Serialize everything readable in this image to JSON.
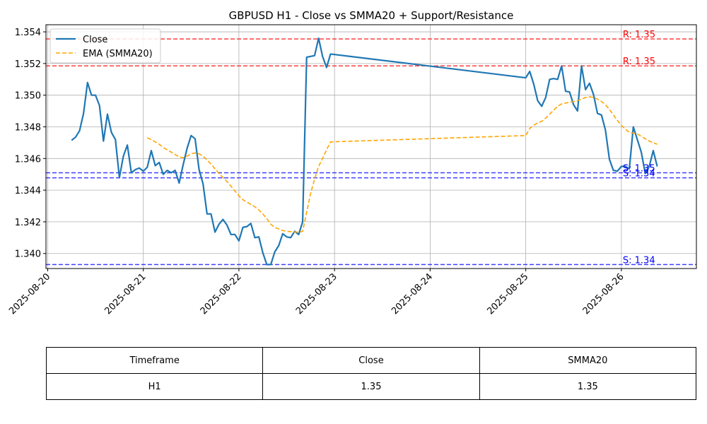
{
  "chart_data": {
    "type": "line",
    "title": "GBPUSD H1 - Close vs SMMA20 + Support/Resistance",
    "xlabel": "",
    "ylabel": "",
    "x_tick_labels": [
      "2025-08-20",
      "2025-08-21",
      "2025-08-22",
      "2025-08-23",
      "2025-08-24",
      "2025-08-25",
      "2025-08-26"
    ],
    "y_tick_labels": [
      "1.340",
      "1.342",
      "1.344",
      "1.346",
      "1.348",
      "1.350",
      "1.352",
      "1.354"
    ],
    "xlim": [
      "2025-08-19 23:34",
      "2025-08-26 18:50"
    ],
    "ylim": [
      1.33905,
      1.35445
    ],
    "grid": true,
    "legend_position": "top-left",
    "series": [
      {
        "name": "Close",
        "style": "solid",
        "color": "#1f77b4",
        "points": [
          [
            "2025-08-20 06:00",
            1.34715
          ],
          [
            "2025-08-20 07:00",
            1.34735
          ],
          [
            "2025-08-20 08:00",
            1.34775
          ],
          [
            "2025-08-20 09:00",
            1.34885
          ],
          [
            "2025-08-20 10:00",
            1.3508
          ],
          [
            "2025-08-20 11:00",
            1.35
          ],
          [
            "2025-08-20 12:00",
            1.35
          ],
          [
            "2025-08-20 13:00",
            1.34935
          ],
          [
            "2025-08-20 14:00",
            1.3471
          ],
          [
            "2025-08-20 15:00",
            1.3488
          ],
          [
            "2025-08-20 16:00",
            1.34765
          ],
          [
            "2025-08-20 17:00",
            1.3472
          ],
          [
            "2025-08-20 18:00",
            1.3448
          ],
          [
            "2025-08-20 19:00",
            1.34615
          ],
          [
            "2025-08-20 20:00",
            1.34685
          ],
          [
            "2025-08-20 21:00",
            1.3451
          ],
          [
            "2025-08-20 22:00",
            1.3453
          ],
          [
            "2025-08-20 23:00",
            1.3454
          ],
          [
            "2025-08-21 00:00",
            1.3452
          ],
          [
            "2025-08-21 01:00",
            1.34545
          ],
          [
            "2025-08-21 02:00",
            1.3465
          ],
          [
            "2025-08-21 03:00",
            1.34555
          ],
          [
            "2025-08-21 04:00",
            1.34575
          ],
          [
            "2025-08-21 05:00",
            1.345
          ],
          [
            "2025-08-21 06:00",
            1.34525
          ],
          [
            "2025-08-21 07:00",
            1.3451
          ],
          [
            "2025-08-21 08:00",
            1.34525
          ],
          [
            "2025-08-21 09:00",
            1.34445
          ],
          [
            "2025-08-21 10:00",
            1.3456
          ],
          [
            "2025-08-21 11:00",
            1.34665
          ],
          [
            "2025-08-21 12:00",
            1.34745
          ],
          [
            "2025-08-21 13:00",
            1.34725
          ],
          [
            "2025-08-21 14:00",
            1.3453
          ],
          [
            "2025-08-21 15:00",
            1.3444
          ],
          [
            "2025-08-21 16:00",
            1.3425
          ],
          [
            "2025-08-21 17:00",
            1.3425
          ],
          [
            "2025-08-21 18:00",
            1.34135
          ],
          [
            "2025-08-21 19:00",
            1.34185
          ],
          [
            "2025-08-21 20:00",
            1.34215
          ],
          [
            "2025-08-21 21:00",
            1.3418
          ],
          [
            "2025-08-21 22:00",
            1.3412
          ],
          [
            "2025-08-21 23:00",
            1.3412
          ],
          [
            "2025-08-22 00:00",
            1.3408
          ],
          [
            "2025-08-22 01:00",
            1.34165
          ],
          [
            "2025-08-22 02:00",
            1.3417
          ],
          [
            "2025-08-22 03:00",
            1.3419
          ],
          [
            "2025-08-22 04:00",
            1.341
          ],
          [
            "2025-08-22 05:00",
            1.34105
          ],
          [
            "2025-08-22 06:00",
            1.34005
          ],
          [
            "2025-08-22 07:00",
            1.3393
          ],
          [
            "2025-08-22 08:00",
            1.3393
          ],
          [
            "2025-08-22 09:00",
            1.3401
          ],
          [
            "2025-08-22 10:00",
            1.3405
          ],
          [
            "2025-08-22 11:00",
            1.34125
          ],
          [
            "2025-08-22 12:00",
            1.34105
          ],
          [
            "2025-08-22 13:00",
            1.341
          ],
          [
            "2025-08-22 14:00",
            1.3414
          ],
          [
            "2025-08-22 15:00",
            1.3412
          ],
          [
            "2025-08-22 16:00",
            1.342
          ],
          [
            "2025-08-22 17:00",
            1.3524
          ],
          [
            "2025-08-22 18:00",
            1.35245
          ],
          [
            "2025-08-22 19:00",
            1.3525
          ],
          [
            "2025-08-22 20:00",
            1.3536
          ],
          [
            "2025-08-22 21:00",
            1.35245
          ],
          [
            "2025-08-22 22:00",
            1.35175
          ],
          [
            "2025-08-22 23:00",
            1.3526
          ],
          [
            "2025-08-25 00:00",
            1.3511
          ],
          [
            "2025-08-25 01:00",
            1.3515
          ],
          [
            "2025-08-25 02:00",
            1.3507
          ],
          [
            "2025-08-25 03:00",
            1.34965
          ],
          [
            "2025-08-25 04:00",
            1.3493
          ],
          [
            "2025-08-25 05:00",
            1.34985
          ],
          [
            "2025-08-25 06:00",
            1.351
          ],
          [
            "2025-08-25 07:00",
            1.35105
          ],
          [
            "2025-08-25 08:00",
            1.351
          ],
          [
            "2025-08-25 09:00",
            1.35185
          ],
          [
            "2025-08-25 10:00",
            1.35025
          ],
          [
            "2025-08-25 11:00",
            1.3502
          ],
          [
            "2025-08-25 12:00",
            1.3494
          ],
          [
            "2025-08-25 13:00",
            1.349
          ],
          [
            "2025-08-25 14:00",
            1.35185
          ],
          [
            "2025-08-25 15:00",
            1.35035
          ],
          [
            "2025-08-25 16:00",
            1.35075
          ],
          [
            "2025-08-25 17:00",
            1.35005
          ],
          [
            "2025-08-25 18:00",
            1.34885
          ],
          [
            "2025-08-25 19:00",
            1.34875
          ],
          [
            "2025-08-25 20:00",
            1.3478
          ],
          [
            "2025-08-25 21:00",
            1.34595
          ],
          [
            "2025-08-25 22:00",
            1.34525
          ],
          [
            "2025-08-25 23:00",
            1.3452
          ],
          [
            "2025-08-26 00:00",
            1.3455
          ],
          [
            "2025-08-26 01:00",
            1.3455
          ],
          [
            "2025-08-26 02:00",
            1.34535
          ],
          [
            "2025-08-26 03:00",
            1.348
          ],
          [
            "2025-08-26 04:00",
            1.3472
          ],
          [
            "2025-08-26 05:00",
            1.3464
          ],
          [
            "2025-08-26 06:00",
            1.34505
          ],
          [
            "2025-08-26 07:00",
            1.3455
          ],
          [
            "2025-08-26 08:00",
            1.3465
          ],
          [
            "2025-08-26 09:00",
            1.3455
          ]
        ]
      },
      {
        "name": "EMA (SMMA20)",
        "style": "dashed",
        "color": "#ffa500",
        "points": [
          [
            "2025-08-21 01:00",
            1.3473
          ],
          [
            "2025-08-21 02:00",
            1.3472
          ],
          [
            "2025-08-21 03:00",
            1.34705
          ],
          [
            "2025-08-21 04:00",
            1.3469
          ],
          [
            "2025-08-21 05:00",
            1.3467
          ],
          [
            "2025-08-21 06:00",
            1.34655
          ],
          [
            "2025-08-21 07:00",
            1.3464
          ],
          [
            "2025-08-21 08:00",
            1.34625
          ],
          [
            "2025-08-21 09:00",
            1.3461
          ],
          [
            "2025-08-21 10:00",
            1.34605
          ],
          [
            "2025-08-21 11:00",
            1.34615
          ],
          [
            "2025-08-21 12:00",
            1.3463
          ],
          [
            "2025-08-21 13:00",
            1.34635
          ],
          [
            "2025-08-21 14:00",
            1.3463
          ],
          [
            "2025-08-21 15:00",
            1.34615
          ],
          [
            "2025-08-21 16:00",
            1.3459
          ],
          [
            "2025-08-21 17:00",
            1.34565
          ],
          [
            "2025-08-21 18:00",
            1.34535
          ],
          [
            "2025-08-21 19:00",
            1.34505
          ],
          [
            "2025-08-21 20:00",
            1.3448
          ],
          [
            "2025-08-21 21:00",
            1.34455
          ],
          [
            "2025-08-21 22:00",
            1.34425
          ],
          [
            "2025-08-21 23:00",
            1.34395
          ],
          [
            "2025-08-22 00:00",
            1.34365
          ],
          [
            "2025-08-22 01:00",
            1.3434
          ],
          [
            "2025-08-22 02:00",
            1.34325
          ],
          [
            "2025-08-22 03:00",
            1.3431
          ],
          [
            "2025-08-22 04:00",
            1.34295
          ],
          [
            "2025-08-22 05:00",
            1.34275
          ],
          [
            "2025-08-22 06:00",
            1.3425
          ],
          [
            "2025-08-22 07:00",
            1.3422
          ],
          [
            "2025-08-22 08:00",
            1.34185
          ],
          [
            "2025-08-22 09:00",
            1.34165
          ],
          [
            "2025-08-22 10:00",
            1.34155
          ],
          [
            "2025-08-22 11:00",
            1.34145
          ],
          [
            "2025-08-22 12:00",
            1.3414
          ],
          [
            "2025-08-22 13:00",
            1.34138
          ],
          [
            "2025-08-22 14:00",
            1.34135
          ],
          [
            "2025-08-22 15:00",
            1.34135
          ],
          [
            "2025-08-22 16:00",
            1.3414
          ],
          [
            "2025-08-22 17:00",
            1.3426
          ],
          [
            "2025-08-22 18:00",
            1.3438
          ],
          [
            "2025-08-22 19:00",
            1.3447
          ],
          [
            "2025-08-22 20:00",
            1.3455
          ],
          [
            "2025-08-22 21:00",
            1.346
          ],
          [
            "2025-08-22 22:00",
            1.34655
          ],
          [
            "2025-08-22 23:00",
            1.34705
          ],
          [
            "2025-08-25 00:00",
            1.34745
          ],
          [
            "2025-08-25 01:00",
            1.3479
          ],
          [
            "2025-08-25 02:00",
            1.3481
          ],
          [
            "2025-08-25 03:00",
            1.34825
          ],
          [
            "2025-08-25 04:00",
            1.34835
          ],
          [
            "2025-08-25 05:00",
            1.34855
          ],
          [
            "2025-08-25 06:00",
            1.3488
          ],
          [
            "2025-08-25 07:00",
            1.34905
          ],
          [
            "2025-08-25 08:00",
            1.3493
          ],
          [
            "2025-08-25 09:00",
            1.34945
          ],
          [
            "2025-08-25 10:00",
            1.3495
          ],
          [
            "2025-08-25 11:00",
            1.34955
          ],
          [
            "2025-08-25 12:00",
            1.3496
          ],
          [
            "2025-08-25 13:00",
            1.34965
          ],
          [
            "2025-08-25 14:00",
            1.34975
          ],
          [
            "2025-08-25 15:00",
            1.34985
          ],
          [
            "2025-08-25 16:00",
            1.3499
          ],
          [
            "2025-08-25 17:00",
            1.34985
          ],
          [
            "2025-08-25 18:00",
            1.34975
          ],
          [
            "2025-08-25 19:00",
            1.3496
          ],
          [
            "2025-08-25 20:00",
            1.3494
          ],
          [
            "2025-08-25 21:00",
            1.3491
          ],
          [
            "2025-08-25 22:00",
            1.34875
          ],
          [
            "2025-08-25 23:00",
            1.3484
          ],
          [
            "2025-08-26 00:00",
            1.3481
          ],
          [
            "2025-08-26 01:00",
            1.34785
          ],
          [
            "2025-08-26 02:00",
            1.34765
          ],
          [
            "2025-08-26 03:00",
            1.3476
          ],
          [
            "2025-08-26 04:00",
            1.34755
          ],
          [
            "2025-08-26 05:00",
            1.3474
          ],
          [
            "2025-08-26 06:00",
            1.34725
          ],
          [
            "2025-08-26 07:00",
            1.3471
          ],
          [
            "2025-08-26 08:00",
            1.347
          ],
          [
            "2025-08-26 09:00",
            1.3469
          ]
        ]
      }
    ],
    "horizontal_lines": [
      {
        "kind": "resistance",
        "value": 1.35355,
        "label": "R: 1.35",
        "color": "#ff0000"
      },
      {
        "kind": "resistance",
        "value": 1.35185,
        "label": "R: 1.35",
        "color": "#ff0000"
      },
      {
        "kind": "support",
        "value": 1.3451,
        "label": "S: 1.35",
        "color": "#0000ff"
      },
      {
        "kind": "support",
        "value": 1.34478,
        "label": "S: 1.34",
        "color": "#0000ff"
      },
      {
        "kind": "support",
        "value": 1.3393,
        "label": "S: 1.34",
        "color": "#0000ff"
      }
    ]
  },
  "table": {
    "headers": [
      "Timeframe",
      "Close",
      "SMMA20"
    ],
    "rows": [
      [
        "H1",
        "1.35",
        "1.35"
      ]
    ]
  }
}
